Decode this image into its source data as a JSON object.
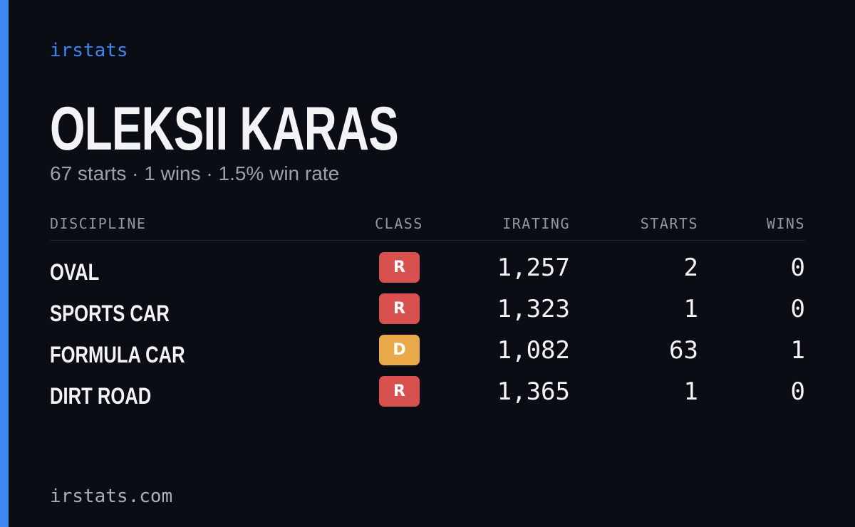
{
  "brand": "irstats",
  "driver": {
    "name": "OLEKSII KARAS",
    "summary": "67 starts · 1 wins · 1.5% win rate"
  },
  "table": {
    "headers": [
      "DISCIPLINE",
      "CLASS",
      "IRATING",
      "STARTS",
      "WINS"
    ],
    "rows": [
      {
        "discipline": "OVAL",
        "class": "R",
        "class_color": "#d9514e",
        "irating": "1,257",
        "starts": "2",
        "wins": "0"
      },
      {
        "discipline": "SPORTS CAR",
        "class": "R",
        "class_color": "#d9514e",
        "irating": "1,323",
        "starts": "1",
        "wins": "0"
      },
      {
        "discipline": "FORMULA CAR",
        "class": "D",
        "class_color": "#e9a94b",
        "irating": "1,082",
        "starts": "63",
        "wins": "1"
      },
      {
        "discipline": "DIRT ROAD",
        "class": "R",
        "class_color": "#d9514e",
        "irating": "1,365",
        "starts": "1",
        "wins": "0"
      }
    ]
  },
  "footer": "irstats.com"
}
